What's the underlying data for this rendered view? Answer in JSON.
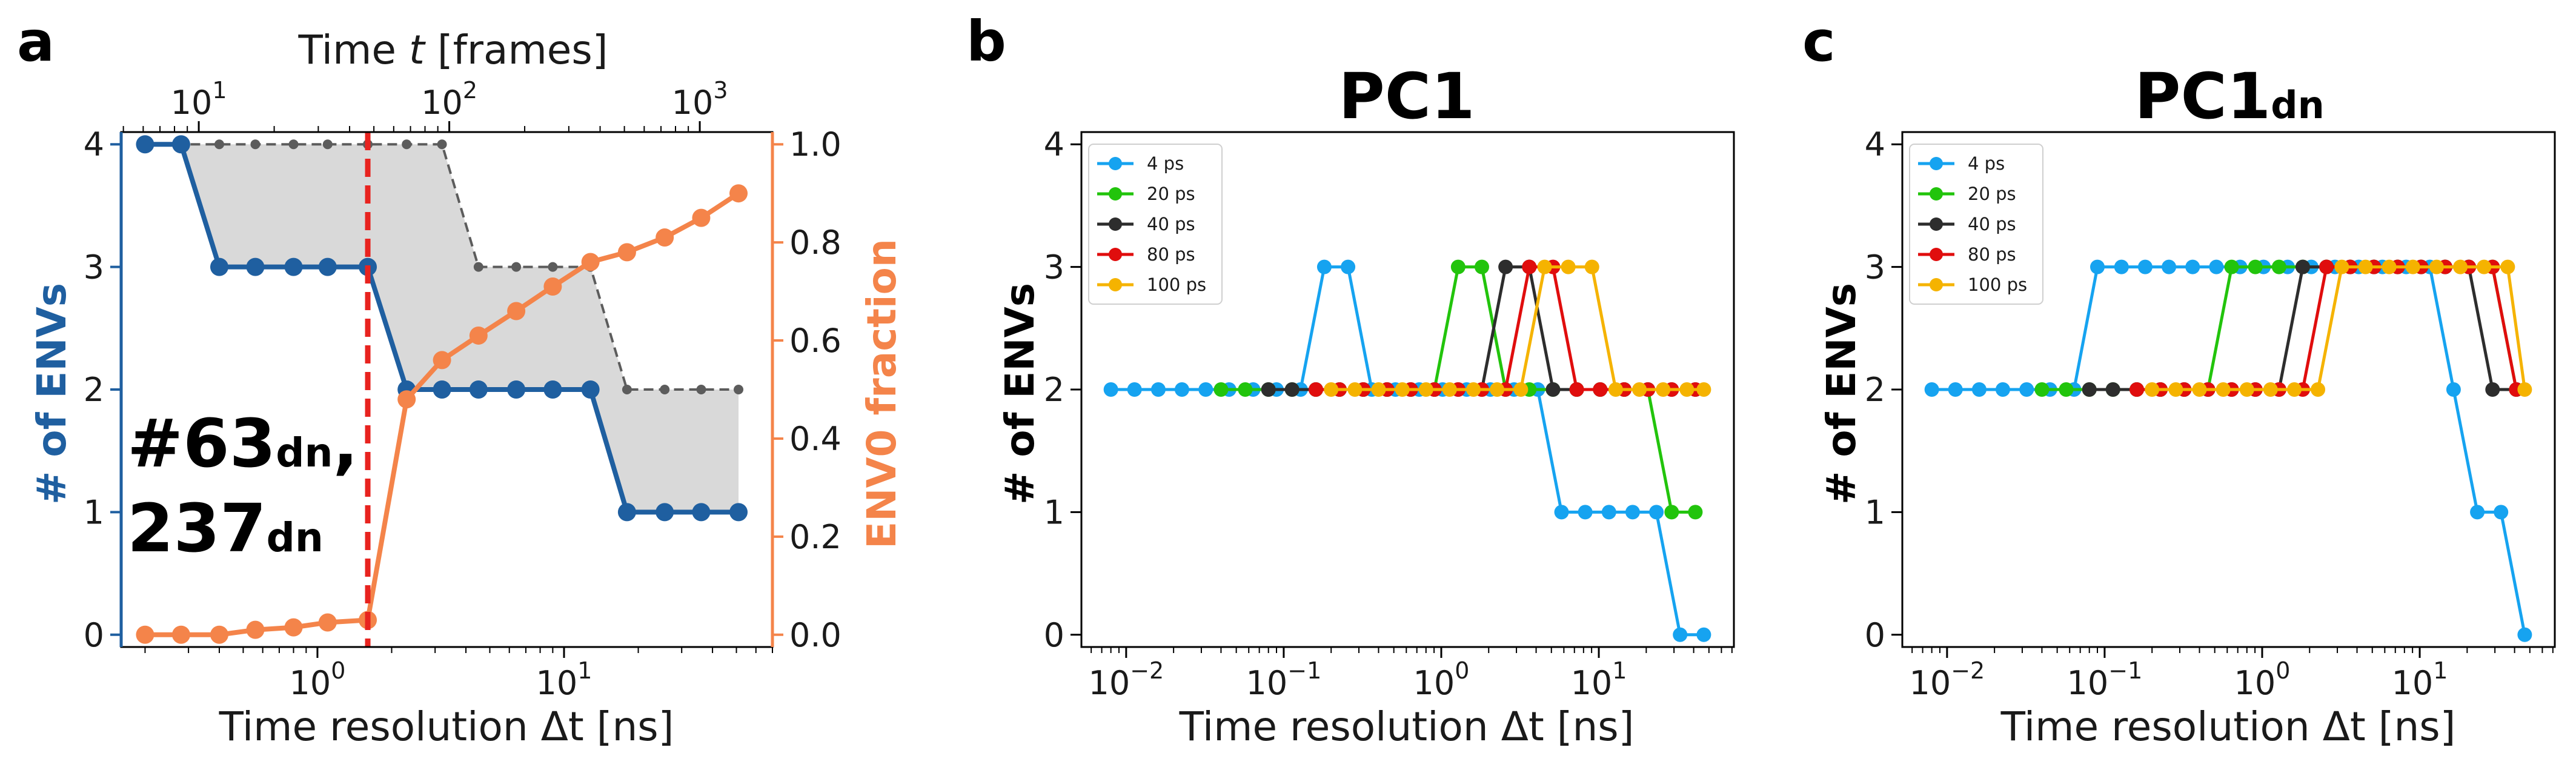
{
  "colors": {
    "blue": "#1f5fa0",
    "orange": "#f4844a",
    "gray": "#5c5c5c",
    "shade": "#d9d9d9",
    "red": "#e8231f",
    "s4": "#16a3f0",
    "s20": "#22c40c",
    "s40": "#2d2d2d",
    "s80": "#e00d0d",
    "s100": "#f5b300"
  },
  "chart_data": [
    {
      "id": "a",
      "panel_label": "a",
      "type": "line",
      "xlabel_prefix": "Time resolution ",
      "xlabel_var": "Δt",
      "xlabel_suffix": " [ns]",
      "ylabel": "# of ENVs",
      "y2label": "ENV0 fraction",
      "top_xlabel_prefix": "Time ",
      "top_xlabel_var": "t",
      "top_xlabel_suffix": " [frames]",
      "xlog": true,
      "xlim": [
        0.16,
        70
      ],
      "ylim": [
        -0.1,
        4.1
      ],
      "y2lim": [
        -0.025,
        1.025
      ],
      "top_xlim": [
        4.9,
        1950
      ],
      "xticks": [
        {
          "v": 1,
          "exp": "0"
        },
        {
          "v": 10,
          "exp": "1"
        }
      ],
      "yticks": [
        "0",
        "1",
        "2",
        "3",
        "4"
      ],
      "y2ticks": [
        "0.0",
        "0.2",
        "0.4",
        "0.6",
        "0.8",
        "1.0"
      ],
      "top_xticks": [
        {
          "v": 10,
          "exp": "1"
        },
        {
          "v": 100,
          "exp": "2"
        },
        {
          "v": 1000,
          "exp": "3"
        }
      ],
      "vline_x": 1.6,
      "annotation_line1": "#63",
      "annotation_sub1": "dn",
      "annotation_line1_end": ",",
      "annotation_line2": "237",
      "annotation_sub2": "dn",
      "series_envs": {
        "name": "# of ENVs",
        "x": [
          0.2,
          0.28,
          0.4,
          0.56,
          0.8,
          1.1,
          1.6,
          2.3,
          3.2,
          4.5,
          6.4,
          9,
          12.8,
          18,
          25.6,
          36,
          51
        ],
        "y": [
          4,
          4,
          3,
          3,
          3,
          3,
          3,
          2,
          2,
          2,
          2,
          2,
          2,
          1,
          1,
          1,
          1
        ]
      },
      "series_max": {
        "name": "max ENVs",
        "x": [
          0.2,
          0.28,
          0.4,
          0.56,
          0.8,
          1.1,
          1.6,
          2.3,
          3.2,
          4.5,
          6.4,
          9,
          12.8,
          18,
          25.6,
          36,
          51
        ],
        "y": [
          4,
          4,
          4,
          4,
          4,
          4,
          4,
          4,
          4,
          3,
          3,
          3,
          3,
          2,
          2,
          2,
          2
        ]
      },
      "series_fraction": {
        "name": "ENV0 fraction",
        "x": [
          0.2,
          0.28,
          0.4,
          0.56,
          0.8,
          1.1,
          1.6,
          2.3,
          3.2,
          4.5,
          6.4,
          9,
          12.8,
          18,
          25.6,
          36,
          51
        ],
        "y": [
          0.0,
          0.0,
          0.0,
          0.01,
          0.015,
          0.025,
          0.03,
          0.48,
          0.56,
          0.61,
          0.66,
          0.71,
          0.76,
          0.78,
          0.81,
          0.85,
          0.9
        ]
      }
    },
    {
      "id": "b",
      "panel_label": "b",
      "type": "line",
      "title": "PC1",
      "title_sub": "",
      "xlabel_prefix": "Time resolution ",
      "xlabel_var": "Δt",
      "xlabel_suffix": " [ns]",
      "ylabel": "# of ENVs",
      "xlog": true,
      "xlim": [
        0.0052,
        72
      ],
      "ylim": [
        -0.1,
        4.1
      ],
      "xticks": [
        {
          "v": 0.01,
          "exp": "−2"
        },
        {
          "v": 0.1,
          "exp": "−1"
        },
        {
          "v": 1,
          "exp": "0"
        },
        {
          "v": 10,
          "exp": "1"
        }
      ],
      "yticks": [
        "0",
        "1",
        "2",
        "3",
        "4"
      ],
      "series": [
        {
          "name": "4 ps",
          "color_key": "s4",
          "x": [
            0.008,
            0.0113,
            0.016,
            0.0226,
            0.032,
            0.045,
            0.064,
            0.09,
            0.128,
            0.181,
            0.256,
            0.362,
            0.512,
            0.724,
            1.02,
            1.45,
            2.05,
            2.9,
            4.1,
            5.8,
            8.2,
            11.6,
            16.4,
            23.2,
            32.8,
            46.4
          ],
          "y": [
            2,
            2,
            2,
            2,
            2,
            2,
            2,
            2,
            2,
            3,
            3,
            2,
            2,
            2,
            2,
            2,
            2,
            2,
            2,
            1,
            1,
            1,
            1,
            1,
            0,
            0
          ]
        },
        {
          "name": "20 ps",
          "color_key": "s20",
          "x": [
            0.04,
            0.057,
            0.08,
            0.113,
            0.16,
            0.226,
            0.32,
            0.453,
            0.64,
            0.905,
            1.28,
            1.81,
            2.56,
            3.62,
            5.12,
            7.24,
            10.2,
            14.5,
            20.5,
            29,
            41
          ],
          "y": [
            2,
            2,
            2,
            2,
            2,
            2,
            2,
            2,
            2,
            2,
            3,
            3,
            2,
            2,
            2,
            2,
            2,
            2,
            2,
            1,
            1
          ]
        },
        {
          "name": "40 ps",
          "color_key": "s40",
          "x": [
            0.08,
            0.113,
            0.16,
            0.226,
            0.32,
            0.453,
            0.64,
            0.905,
            1.28,
            1.81,
            2.56,
            3.62,
            5.12,
            7.24,
            10.2,
            14.5,
            20.5,
            29,
            41
          ],
          "y": [
            2,
            2,
            2,
            2,
            2,
            2,
            2,
            2,
            2,
            2,
            3,
            3,
            2,
            2,
            2,
            2,
            2,
            2,
            2
          ]
        },
        {
          "name": "80 ps",
          "color_key": "s80",
          "x": [
            0.16,
            0.226,
            0.32,
            0.453,
            0.64,
            0.905,
            1.28,
            1.81,
            2.56,
            3.62,
            5.12,
            7.24,
            10.2,
            14.5,
            20.5,
            29,
            41
          ],
          "y": [
            2,
            2,
            2,
            2,
            2,
            2,
            2,
            2,
            2,
            3,
            3,
            2,
            2,
            2,
            2,
            2,
            2
          ]
        },
        {
          "name": "100 ps",
          "color_key": "s100",
          "x": [
            0.2,
            0.283,
            0.4,
            0.566,
            0.8,
            1.13,
            1.6,
            2.26,
            3.2,
            4.53,
            6.4,
            9.05,
            12.8,
            18.1,
            25.6,
            36.2,
            46.4
          ],
          "y": [
            2,
            2,
            2,
            2,
            2,
            2,
            2,
            2,
            2,
            3,
            3,
            3,
            2,
            2,
            2,
            2,
            2
          ]
        }
      ]
    },
    {
      "id": "c",
      "panel_label": "c",
      "type": "line",
      "title": "PC1",
      "title_sub": "dn",
      "xlabel_prefix": "Time resolution ",
      "xlabel_var": "Δt",
      "xlabel_suffix": " [ns]",
      "ylabel": "# of ENVs",
      "xlog": true,
      "xlim": [
        0.0052,
        72
      ],
      "ylim": [
        -0.1,
        4.1
      ],
      "xticks": [
        {
          "v": 0.01,
          "exp": "−2"
        },
        {
          "v": 0.1,
          "exp": "−1"
        },
        {
          "v": 1,
          "exp": "0"
        },
        {
          "v": 10,
          "exp": "1"
        }
      ],
      "yticks": [
        "0",
        "1",
        "2",
        "3",
        "4"
      ],
      "series": [
        {
          "name": "4 ps",
          "color_key": "s4",
          "x": [
            0.008,
            0.0113,
            0.016,
            0.0226,
            0.032,
            0.045,
            0.064,
            0.09,
            0.128,
            0.181,
            0.256,
            0.362,
            0.512,
            0.724,
            1.02,
            1.45,
            2.05,
            2.9,
            4.1,
            5.8,
            8.2,
            11.6,
            16.4,
            23.2,
            32.8,
            46.4
          ],
          "y": [
            2,
            2,
            2,
            2,
            2,
            2,
            2,
            3,
            3,
            3,
            3,
            3,
            3,
            3,
            3,
            3,
            3,
            3,
            3,
            3,
            3,
            3,
            2,
            1,
            1,
            0
          ]
        },
        {
          "name": "20 ps",
          "color_key": "s20",
          "x": [
            0.04,
            0.057,
            0.08,
            0.113,
            0.16,
            0.226,
            0.32,
            0.453,
            0.64,
            0.905,
            1.28,
            1.81,
            2.56,
            3.62,
            5.12,
            7.24,
            10.2,
            14.5,
            20.5,
            29,
            41
          ],
          "y": [
            2,
            2,
            2,
            2,
            2,
            2,
            2,
            2,
            3,
            3,
            3,
            3,
            3,
            3,
            3,
            3,
            3,
            3,
            3,
            3,
            2
          ]
        },
        {
          "name": "40 ps",
          "color_key": "s40",
          "x": [
            0.08,
            0.113,
            0.16,
            0.226,
            0.32,
            0.453,
            0.64,
            0.905,
            1.28,
            1.81,
            2.56,
            3.62,
            5.12,
            7.24,
            10.2,
            14.5,
            20.5,
            29,
            41
          ],
          "y": [
            2,
            2,
            2,
            2,
            2,
            2,
            2,
            2,
            2,
            3,
            3,
            3,
            3,
            3,
            3,
            3,
            3,
            2,
            2
          ]
        },
        {
          "name": "80 ps",
          "color_key": "s80",
          "x": [
            0.16,
            0.226,
            0.32,
            0.453,
            0.64,
            0.905,
            1.28,
            1.81,
            2.56,
            3.62,
            5.12,
            7.24,
            10.2,
            14.5,
            20.5,
            29,
            41
          ],
          "y": [
            2,
            2,
            2,
            2,
            2,
            2,
            2,
            2,
            3,
            3,
            3,
            3,
            3,
            3,
            3,
            3,
            2
          ]
        },
        {
          "name": "100 ps",
          "color_key": "s100",
          "x": [
            0.2,
            0.283,
            0.4,
            0.566,
            0.8,
            1.13,
            1.6,
            2.26,
            3.2,
            4.53,
            6.4,
            9.05,
            12.8,
            18.1,
            25.6,
            36.2,
            46.4
          ],
          "y": [
            2,
            2,
            2,
            2,
            2,
            2,
            2,
            2,
            3,
            3,
            3,
            3,
            3,
            3,
            3,
            3,
            2
          ]
        }
      ]
    }
  ]
}
